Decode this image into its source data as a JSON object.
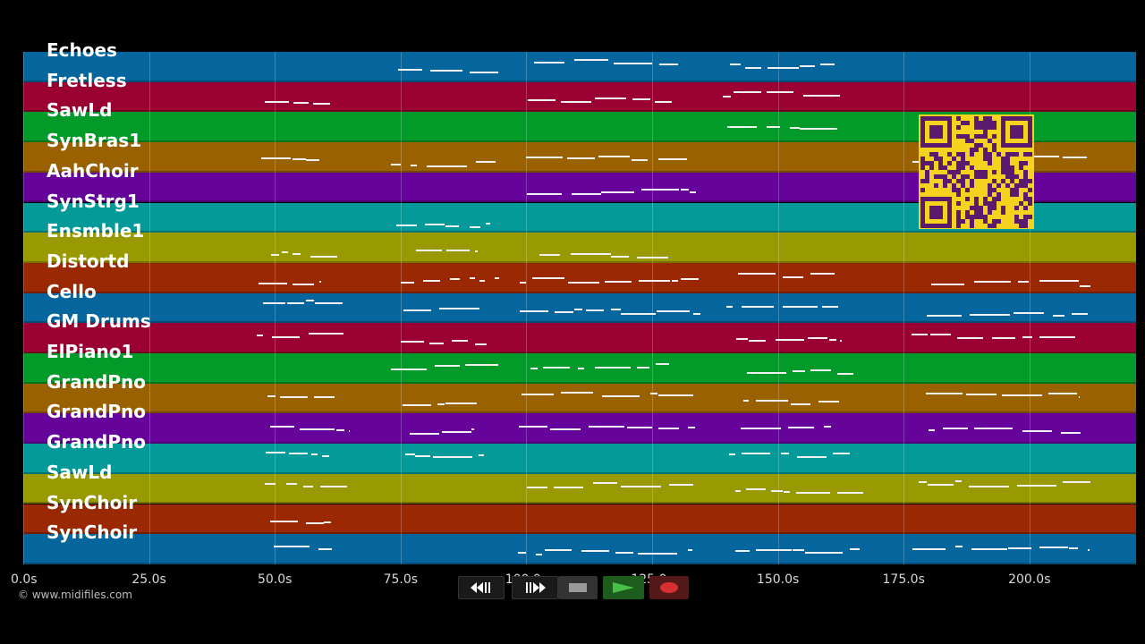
{
  "tracks": [
    {
      "name": "Echoes",
      "color": "#04669c"
    },
    {
      "name": "Fretless",
      "color": "#9b0032"
    },
    {
      "name": "SawLd",
      "color": "#029a29"
    },
    {
      "name": "SynBras1",
      "color": "#9a6100"
    },
    {
      "name": "AahChoir",
      "color": "#66039a"
    },
    {
      "name": "SynStrg1",
      "color": "#049a99"
    },
    {
      "name": "Ensmble1",
      "color": "#999a02"
    },
    {
      "name": "Distortd",
      "color": "#9a2802"
    },
    {
      "name": "Cello",
      "color": "#04669c"
    },
    {
      "name": "GM Drums",
      "color": "#9b0032"
    },
    {
      "name": "ElPiano1",
      "color": "#029a29"
    },
    {
      "name": "GrandPno",
      "color": "#9a6100"
    },
    {
      "name": "GrandPno",
      "color": "#66039a"
    },
    {
      "name": "GrandPno",
      "color": "#049a99"
    },
    {
      "name": "SawLd",
      "color": "#999a02"
    },
    {
      "name": "SynChoir",
      "color": "#9a2802"
    },
    {
      "name": "SynChoir",
      "color": "#04669c"
    }
  ],
  "timeline": {
    "ticks": [
      "0.0s",
      "25.0s",
      "50.0s",
      "75.0s",
      "100.0s",
      "125.0s",
      "150.0s",
      "175.0s",
      "200.0s"
    ],
    "seconds_per_major": 25
  },
  "copyright": "© www.midifiles.com",
  "controls": {
    "rewind_icon": "rewind-icon",
    "forward_icon": "fast-forward-icon",
    "stop_icon": "stop-icon",
    "play_icon": "play-icon",
    "record_icon": "record-icon"
  },
  "qr_icon": "qr-code-icon"
}
